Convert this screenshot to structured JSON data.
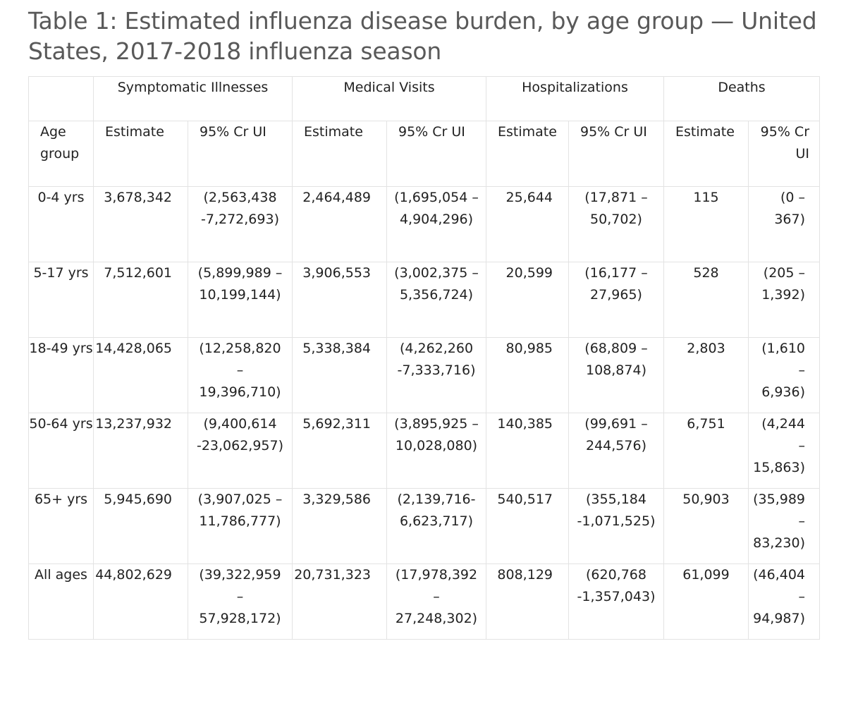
{
  "title": "Table 1: Estimated influenza disease burden, by age group — United States, 2017-2018 influenza season",
  "groups": {
    "symptomatic": "Symptomatic Illnesses",
    "medical": "Medical Visits",
    "hospitalizations": "Hospitalizations",
    "deaths": "Deaths"
  },
  "subheaders": {
    "age_group": "Age group",
    "estimate": "Estimate",
    "cr_ui": "95% Cr UI"
  },
  "rows": [
    {
      "age": "0-4 yrs",
      "ill_est": "3,678,342",
      "ill_ci": "(2,563,438 -7,272,693)",
      "med_est": "2,464,489",
      "med_ci": "(1,695,054 – 4,904,296)",
      "hosp_est": "25,644",
      "hosp_ci": "(17,871 – 50,702)",
      "death_est": "115",
      "death_ci": "(0 – 367)"
    },
    {
      "age": "5-17 yrs",
      "ill_est": "7,512,601",
      "ill_ci": "(5,899,989 – 10,199,144)",
      "med_est": "3,906,553",
      "med_ci": "(3,002,375 – 5,356,724)",
      "hosp_est": "20,599",
      "hosp_ci": "(16,177 – 27,965)",
      "death_est": "528",
      "death_ci": "(205 – 1,392)"
    },
    {
      "age": "18-49 yrs",
      "ill_est": "14,428,065",
      "ill_ci": "(12,258,820 – 19,396,710)",
      "med_est": "5,338,384",
      "med_ci": "(4,262,260 -7,333,716)",
      "hosp_est": "80,985",
      "hosp_ci": "(68,809 – 108,874)",
      "death_est": "2,803",
      "death_ci": "(1,610 – 6,936)"
    },
    {
      "age": "50-64 yrs",
      "ill_est": "13,237,932",
      "ill_ci": "(9,400,614 -23,062,957)",
      "med_est": "5,692,311",
      "med_ci": "(3,895,925 – 10,028,080)",
      "hosp_est": "140,385",
      "hosp_ci": "(99,691 – 244,576)",
      "death_est": "6,751",
      "death_ci": "(4,244 – 15,863)"
    },
    {
      "age": "65+ yrs",
      "ill_est": "5,945,690",
      "ill_ci": "(3,907,025 – 11,786,777)",
      "med_est": "3,329,586",
      "med_ci": "(2,139,716-6,623,717)",
      "hosp_est": "540,517",
      "hosp_ci": "(355,184 -1,071,525)",
      "death_est": "50,903",
      "death_ci": "(35,989 – 83,230)"
    },
    {
      "age": "All ages",
      "ill_est": "44,802,629",
      "ill_ci": "(39,322,959 – 57,928,172)",
      "med_est": "20,731,323",
      "med_ci": "(17,978,392 – 27,248,302)",
      "hosp_est": "808,129",
      "hosp_ci": "(620,768 -1,357,043)",
      "death_est": "61,099",
      "death_ci": "(46,404 – 94,987)"
    }
  ]
}
